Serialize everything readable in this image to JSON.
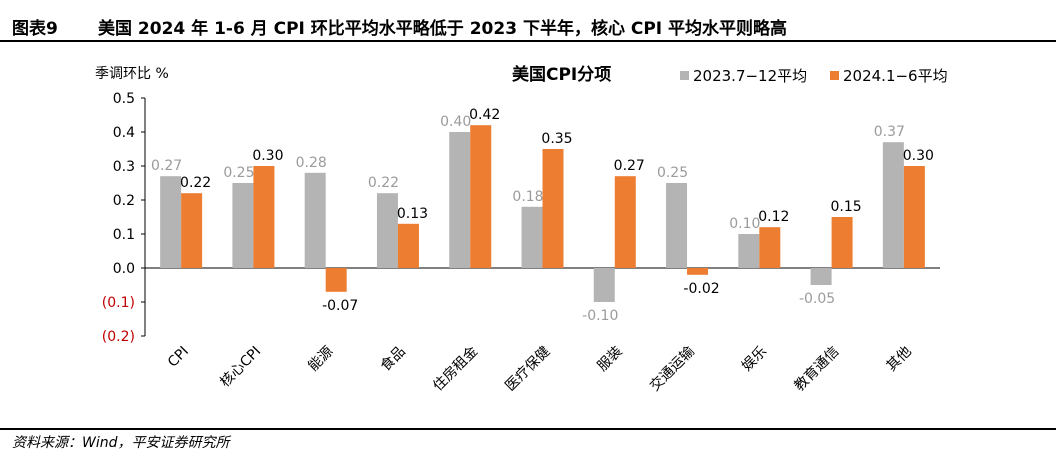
{
  "header": {
    "figure_label": "图表9",
    "title": "美国 2024 年 1-6 月 CPI 环比平均水平略低于 2023 下半年，核心 CPI 平均水平则略高"
  },
  "footer": {
    "source": "资料来源：Wind，平安证券研究所"
  },
  "chart_data": {
    "type": "bar",
    "title": "美国CPI分项",
    "ylabel": "季调环比 %",
    "ylim": [
      -0.2,
      0.5
    ],
    "yticks": [
      0.5,
      0.4,
      0.3,
      0.2,
      0.1,
      0.0,
      -0.1,
      -0.2
    ],
    "ytick_labels": [
      "0.5",
      "0.4",
      "0.3",
      "0.2",
      "0.1",
      "0.0",
      "(0.1)",
      "(0.2)"
    ],
    "grid": false,
    "legend_position": "top-right",
    "categories": [
      "CPI",
      "核心CPI",
      "能源",
      "食品",
      "住房租金",
      "医疗保健",
      "服装",
      "交通运输",
      "娱乐",
      "教育通信",
      "其他"
    ],
    "series": [
      {
        "name": "2023.7−12平均",
        "color": "#b4b4b4",
        "values": [
          0.27,
          0.25,
          0.28,
          0.22,
          0.4,
          0.18,
          -0.1,
          0.25,
          0.1,
          -0.05,
          0.37
        ],
        "labels": [
          "0.27",
          "0.25",
          "0.28",
          "0.22",
          "0.40",
          "0.18",
          "-0.10",
          "0.25",
          "0.10",
          "-0.05",
          "0.37"
        ]
      },
      {
        "name": "2024.1−6平均",
        "color": "#ed7d31",
        "values": [
          0.22,
          0.3,
          -0.07,
          0.13,
          0.42,
          0.35,
          0.27,
          -0.02,
          0.12,
          0.15,
          0.3
        ],
        "labels": [
          "0.22",
          "0.30",
          "-0.07",
          "0.13",
          "0.42",
          "0.35",
          "0.27",
          "-0.02",
          "0.12",
          "0.15",
          "0.30"
        ]
      }
    ]
  }
}
